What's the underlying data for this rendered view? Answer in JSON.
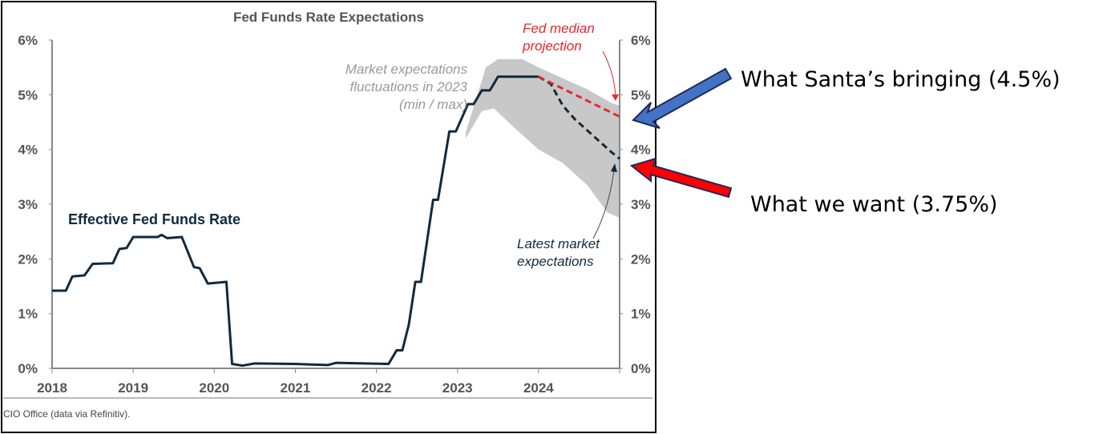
{
  "chart_data": {
    "type": "line",
    "title": "Fed Funds Rate Expectations",
    "source": "CIO Office (data via Refinitiv).",
    "xlim": [
      2018,
      2025
    ],
    "ylim": [
      0,
      6
    ],
    "x_ticks": [
      "2018",
      "2019",
      "2020",
      "2021",
      "2022",
      "2023",
      "2024"
    ],
    "y_ticks": [
      "0%",
      "1%",
      "2%",
      "3%",
      "4%",
      "5%",
      "6%"
    ],
    "grid": false,
    "series": [
      {
        "name": "Effective Fed Funds Rate",
        "style": "solid",
        "color": "#0f2a3f",
        "points": [
          [
            2018.0,
            1.42
          ],
          [
            2018.17,
            1.42
          ],
          [
            2018.25,
            1.68
          ],
          [
            2018.4,
            1.7
          ],
          [
            2018.5,
            1.91
          ],
          [
            2018.75,
            1.92
          ],
          [
            2018.83,
            2.18
          ],
          [
            2018.92,
            2.2
          ],
          [
            2019.0,
            2.4
          ],
          [
            2019.3,
            2.4
          ],
          [
            2019.35,
            2.44
          ],
          [
            2019.42,
            2.38
          ],
          [
            2019.6,
            2.4
          ],
          [
            2019.75,
            1.85
          ],
          [
            2019.82,
            1.83
          ],
          [
            2019.92,
            1.55
          ],
          [
            2020.15,
            1.58
          ],
          [
            2020.22,
            0.08
          ],
          [
            2020.35,
            0.05
          ],
          [
            2020.5,
            0.09
          ],
          [
            2021.0,
            0.08
          ],
          [
            2021.4,
            0.06
          ],
          [
            2021.5,
            0.1
          ],
          [
            2022.15,
            0.08
          ],
          [
            2022.25,
            0.33
          ],
          [
            2022.32,
            0.33
          ],
          [
            2022.4,
            0.8
          ],
          [
            2022.48,
            1.58
          ],
          [
            2022.55,
            1.58
          ],
          [
            2022.7,
            3.08
          ],
          [
            2022.76,
            3.08
          ],
          [
            2022.9,
            4.33
          ],
          [
            2022.98,
            4.33
          ],
          [
            2023.13,
            4.83
          ],
          [
            2023.2,
            4.83
          ],
          [
            2023.3,
            5.08
          ],
          [
            2023.4,
            5.08
          ],
          [
            2023.5,
            5.33
          ],
          [
            2024.0,
            5.33
          ]
        ]
      },
      {
        "name": "Latest market expectations",
        "style": "dashed",
        "color": "#0f2a3f",
        "points": [
          [
            2024.0,
            5.33
          ],
          [
            2024.15,
            5.2
          ],
          [
            2024.3,
            4.8
          ],
          [
            2024.45,
            4.55
          ],
          [
            2024.6,
            4.35
          ],
          [
            2024.75,
            4.15
          ],
          [
            2024.9,
            3.95
          ],
          [
            2025.0,
            3.83
          ]
        ]
      },
      {
        "name": "Fed median projection",
        "style": "dashed",
        "color": "#e8262b",
        "points": [
          [
            2024.0,
            5.33
          ],
          [
            2025.0,
            4.6
          ]
        ]
      }
    ],
    "band": {
      "name": "Market expectations fluctuations in 2023 (min / max)",
      "color": "#c8c8c8",
      "upper": [
        [
          2023.1,
          4.3
        ],
        [
          2023.35,
          5.5
        ],
        [
          2023.5,
          5.65
        ],
        [
          2023.8,
          5.65
        ],
        [
          2024.0,
          5.5
        ],
        [
          2024.3,
          5.3
        ],
        [
          2024.6,
          5.1
        ],
        [
          2024.9,
          4.85
        ],
        [
          2025.0,
          4.8
        ]
      ],
      "lower": [
        [
          2023.1,
          4.2
        ],
        [
          2023.3,
          4.7
        ],
        [
          2023.45,
          4.75
        ],
        [
          2023.7,
          4.4
        ],
        [
          2024.0,
          4.0
        ],
        [
          2024.3,
          3.75
        ],
        [
          2024.6,
          3.35
        ],
        [
          2024.85,
          2.85
        ],
        [
          2025.0,
          2.75
        ]
      ]
    },
    "annotations": {
      "effr": "Effective Fed Funds Rate",
      "band_line1": "Market expectations",
      "band_line2": "fluctuations in 2023",
      "band_line3": "(min / max)",
      "fed_line1": "Fed median",
      "fed_line2": "projection",
      "market_line1": "Latest market",
      "market_line2": "expectations"
    }
  },
  "callouts": {
    "santa": "What Santa’s bringing (4.5%)",
    "want": "What we want (3.75%)",
    "santa_arrow_color": "#4472c4",
    "want_arrow_color": "#ff0000"
  }
}
